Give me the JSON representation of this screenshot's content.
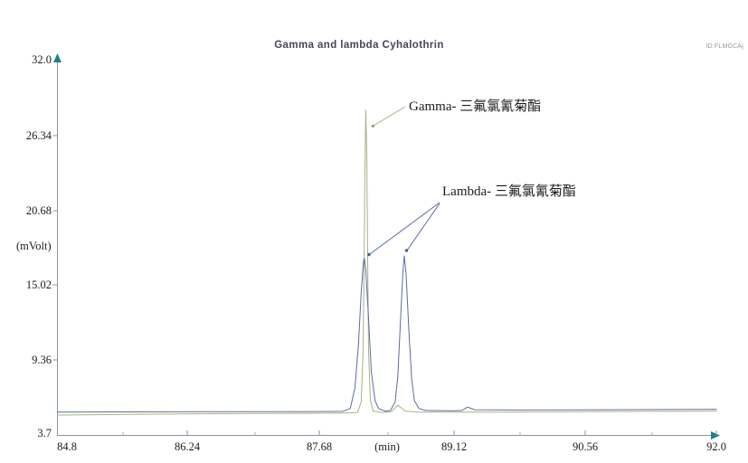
{
  "header": {
    "title": "Gamma and lambda Cyhalothrin",
    "id_label": "ID:FLMGCAj"
  },
  "axes": {
    "y_unit": "(mVolt)",
    "x_unit": "(min)",
    "y_tick_labels": [
      "32.0",
      "26.34",
      "20.68",
      "15.02",
      "9.36",
      "3.7"
    ],
    "x_tick_labels": [
      "84.8",
      "86.24",
      "87.68",
      "89.12",
      "90.56",
      "92.0"
    ]
  },
  "annotations": {
    "gamma": "Gamma- 三氟氯氰菊酯",
    "lambda": "Lambda- 三氟氯氰菊酯"
  },
  "colors": {
    "gamma_trace": "#a6b183",
    "lambda_trace": "#5c6ba3",
    "axis": "#8796a4",
    "arrow": "#1e7f8e",
    "title": "#45455c"
  },
  "chart_data": {
    "type": "line",
    "title": "Gamma and lambda Cyhalothrin",
    "xlabel": "(min)",
    "ylabel": "(mVolt)",
    "xlim": [
      84.8,
      92.0
    ],
    "ylim": [
      3.7,
      32.0
    ],
    "x_ticks": [
      84.8,
      86.24,
      87.68,
      89.12,
      90.56,
      92.0
    ],
    "y_ticks": [
      3.7,
      9.36,
      15.02,
      20.68,
      26.34,
      32.0
    ],
    "grid": false,
    "legend": "none",
    "series": [
      {
        "name": "Gamma- 三氟氯氰菊酯",
        "color": "#a6b183",
        "peak_apex": {
          "time_min": 88.17,
          "mvolt": 28.2
        },
        "points": [
          [
            84.8,
            5.2
          ],
          [
            85.5,
            5.25
          ],
          [
            86.5,
            5.3
          ],
          [
            87.5,
            5.33
          ],
          [
            87.95,
            5.35
          ],
          [
            88.08,
            5.4
          ],
          [
            88.12,
            6.2
          ],
          [
            88.14,
            10.0
          ],
          [
            88.15,
            16.0
          ],
          [
            88.16,
            23.0
          ],
          [
            88.17,
            28.2
          ],
          [
            88.18,
            25.0
          ],
          [
            88.19,
            17.0
          ],
          [
            88.2,
            10.0
          ],
          [
            88.22,
            6.3
          ],
          [
            88.25,
            5.5
          ],
          [
            88.35,
            5.4
          ],
          [
            88.45,
            5.45
          ],
          [
            88.52,
            5.95
          ],
          [
            88.6,
            5.5
          ],
          [
            88.75,
            5.42
          ],
          [
            89.5,
            5.42
          ],
          [
            90.5,
            5.45
          ],
          [
            92.0,
            5.5
          ]
        ]
      },
      {
        "name": "Lambda- 三氟氯氰菊酯",
        "color": "#5c6ba3",
        "peak_apex": [
          {
            "time_min": 88.155,
            "mvolt": 17.0
          },
          {
            "time_min": 88.59,
            "mvolt": 17.2
          }
        ],
        "points": [
          [
            84.8,
            5.42
          ],
          [
            85.5,
            5.44
          ],
          [
            86.5,
            5.46
          ],
          [
            87.5,
            5.45
          ],
          [
            87.92,
            5.48
          ],
          [
            88.0,
            5.7
          ],
          [
            88.05,
            7.2
          ],
          [
            88.09,
            10.5
          ],
          [
            88.12,
            14.5
          ],
          [
            88.145,
            16.8
          ],
          [
            88.155,
            17.0
          ],
          [
            88.17,
            16.2
          ],
          [
            88.2,
            12.5
          ],
          [
            88.23,
            8.5
          ],
          [
            88.27,
            6.3
          ],
          [
            88.31,
            5.7
          ],
          [
            88.38,
            5.5
          ],
          [
            88.44,
            5.55
          ],
          [
            88.49,
            6.2
          ],
          [
            88.52,
            8.2
          ],
          [
            88.55,
            12.5
          ],
          [
            88.575,
            16.0
          ],
          [
            88.59,
            17.2
          ],
          [
            88.61,
            15.8
          ],
          [
            88.64,
            11.5
          ],
          [
            88.67,
            8.0
          ],
          [
            88.7,
            6.3
          ],
          [
            88.75,
            5.7
          ],
          [
            88.82,
            5.55
          ],
          [
            89.1,
            5.52
          ],
          [
            89.22,
            5.55
          ],
          [
            89.28,
            5.8
          ],
          [
            89.36,
            5.6
          ],
          [
            89.8,
            5.58
          ],
          [
            90.8,
            5.6
          ],
          [
            92.0,
            5.64
          ]
        ]
      }
    ]
  }
}
